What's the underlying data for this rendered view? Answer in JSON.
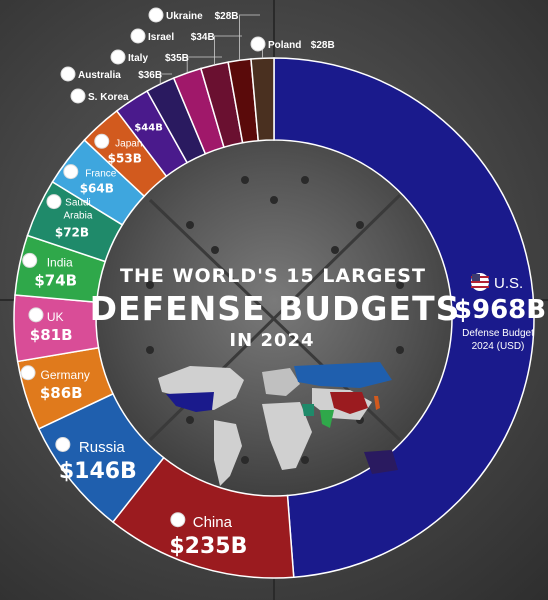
{
  "chart_data": {
    "type": "pie",
    "variant": "donut",
    "title_line1": "THE WORLD'S 15 LARGEST",
    "title_line2": "DEFENSE BUDGETS",
    "title_line3": "IN 2024",
    "unit_note_line1": "Defense Budget",
    "unit_note_line2": "2024 (USD)",
    "slices": [
      {
        "name": "U.S.",
        "value": 968,
        "label": "$968B",
        "color": "#1a1a8c"
      },
      {
        "name": "China",
        "value": 235,
        "label": "$235B",
        "color": "#9b1b1f"
      },
      {
        "name": "Russia",
        "value": 146,
        "label": "$146B",
        "color": "#1f5fae"
      },
      {
        "name": "Germany",
        "value": 86,
        "label": "$86B",
        "color": "#e07a1c"
      },
      {
        "name": "UK",
        "value": 81,
        "label": "$81B",
        "color": "#d94d97"
      },
      {
        "name": "India",
        "value": 74,
        "label": "$74B",
        "color": "#2fa84a"
      },
      {
        "name": "Saudi Arabia",
        "value": 72,
        "label": "$72B",
        "color": "#1f8a6a"
      },
      {
        "name": "France",
        "value": 64,
        "label": "$64B",
        "color": "#3ea6de"
      },
      {
        "name": "Japan",
        "value": 53,
        "label": "$53B",
        "color": "#d25a1e"
      },
      {
        "name": "S. Korea",
        "value": 44,
        "label": "$44B",
        "color": "#4a1a8c"
      },
      {
        "name": "Australia",
        "value": 36,
        "label": "$36B",
        "color": "#2a1a60"
      },
      {
        "name": "Italy",
        "value": 35,
        "label": "$35B",
        "color": "#a0186a"
      },
      {
        "name": "Israel",
        "value": 34,
        "label": "$34B",
        "color": "#6a1030"
      },
      {
        "name": "Ukraine",
        "value": 28,
        "label": "$28B",
        "color": "#5a0a0a"
      },
      {
        "name": "Poland",
        "value": 28,
        "label": "$28B",
        "color": "#4a3020"
      }
    ]
  }
}
